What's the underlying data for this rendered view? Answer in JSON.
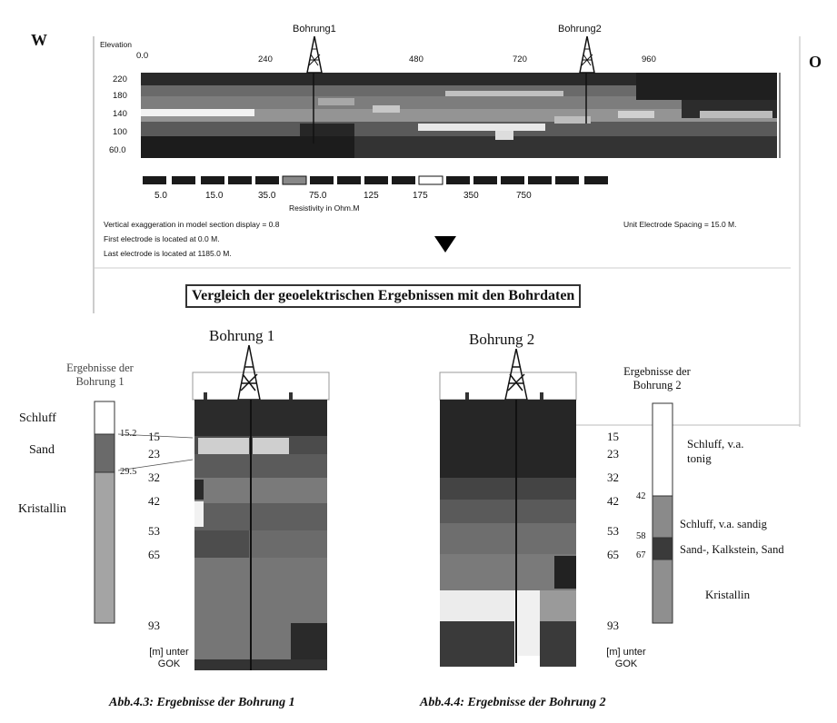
{
  "compass": {
    "west": "W",
    "east": "O"
  },
  "section": {
    "boreholes": [
      "Bohrung1",
      "Bohrung2"
    ],
    "x_axis_title": "Elevation",
    "x_ticks": [
      "0.0",
      "240",
      "480",
      "720",
      "960"
    ],
    "y_ticks": [
      "220",
      "180",
      "140",
      "100",
      "60.0"
    ]
  },
  "legend": {
    "values": [
      "5.0",
      "15.0",
      "35.0",
      "75.0",
      "125",
      "175",
      "350",
      "750"
    ],
    "title": "Resistivity in Ohm.M"
  },
  "notes": {
    "exaggeration": "Vertical exaggeration in model section display = 0.8",
    "first_electrode": "First electrode is located at 0.0  M.",
    "last_electrode": "Last electrode is located at 1185.0 M.",
    "spacing": "Unit Electrode Spacing = 15.0 M."
  },
  "comparison_title": "Vergleich der geoelektrischen Ergebnissen mit den Bohrdaten",
  "bohrung1": {
    "title": "Bohrung 1",
    "result_label": "Ergebnisse der Bohrung 1",
    "layers": [
      "Schluff",
      "Sand",
      "Kristallin"
    ],
    "boundaries": [
      "15.2",
      "29.5"
    ],
    "depth_ticks": [
      "15",
      "23",
      "32",
      "42",
      "53",
      "65",
      "93"
    ],
    "unit_label": "[m] unter GOK",
    "caption": "Abb.4.3: Ergebnisse der Bohrung 1"
  },
  "bohrung2": {
    "title": "Bohrung 2",
    "result_label": "Ergebnisse der Bohrung 2",
    "layers": [
      "Schluff, v.a. tonig",
      "Schluff, v.a. sandig",
      "Sand-, Kalkstein, Sand",
      "Kristallin"
    ],
    "boundaries": [
      "42",
      "58",
      "67"
    ],
    "depth_ticks": [
      "15",
      "23",
      "32",
      "42",
      "53",
      "65",
      "93"
    ],
    "unit_label": "[m] unter GOK",
    "caption": "Abb.4.4: Ergebnisse der Bohrung 2"
  }
}
